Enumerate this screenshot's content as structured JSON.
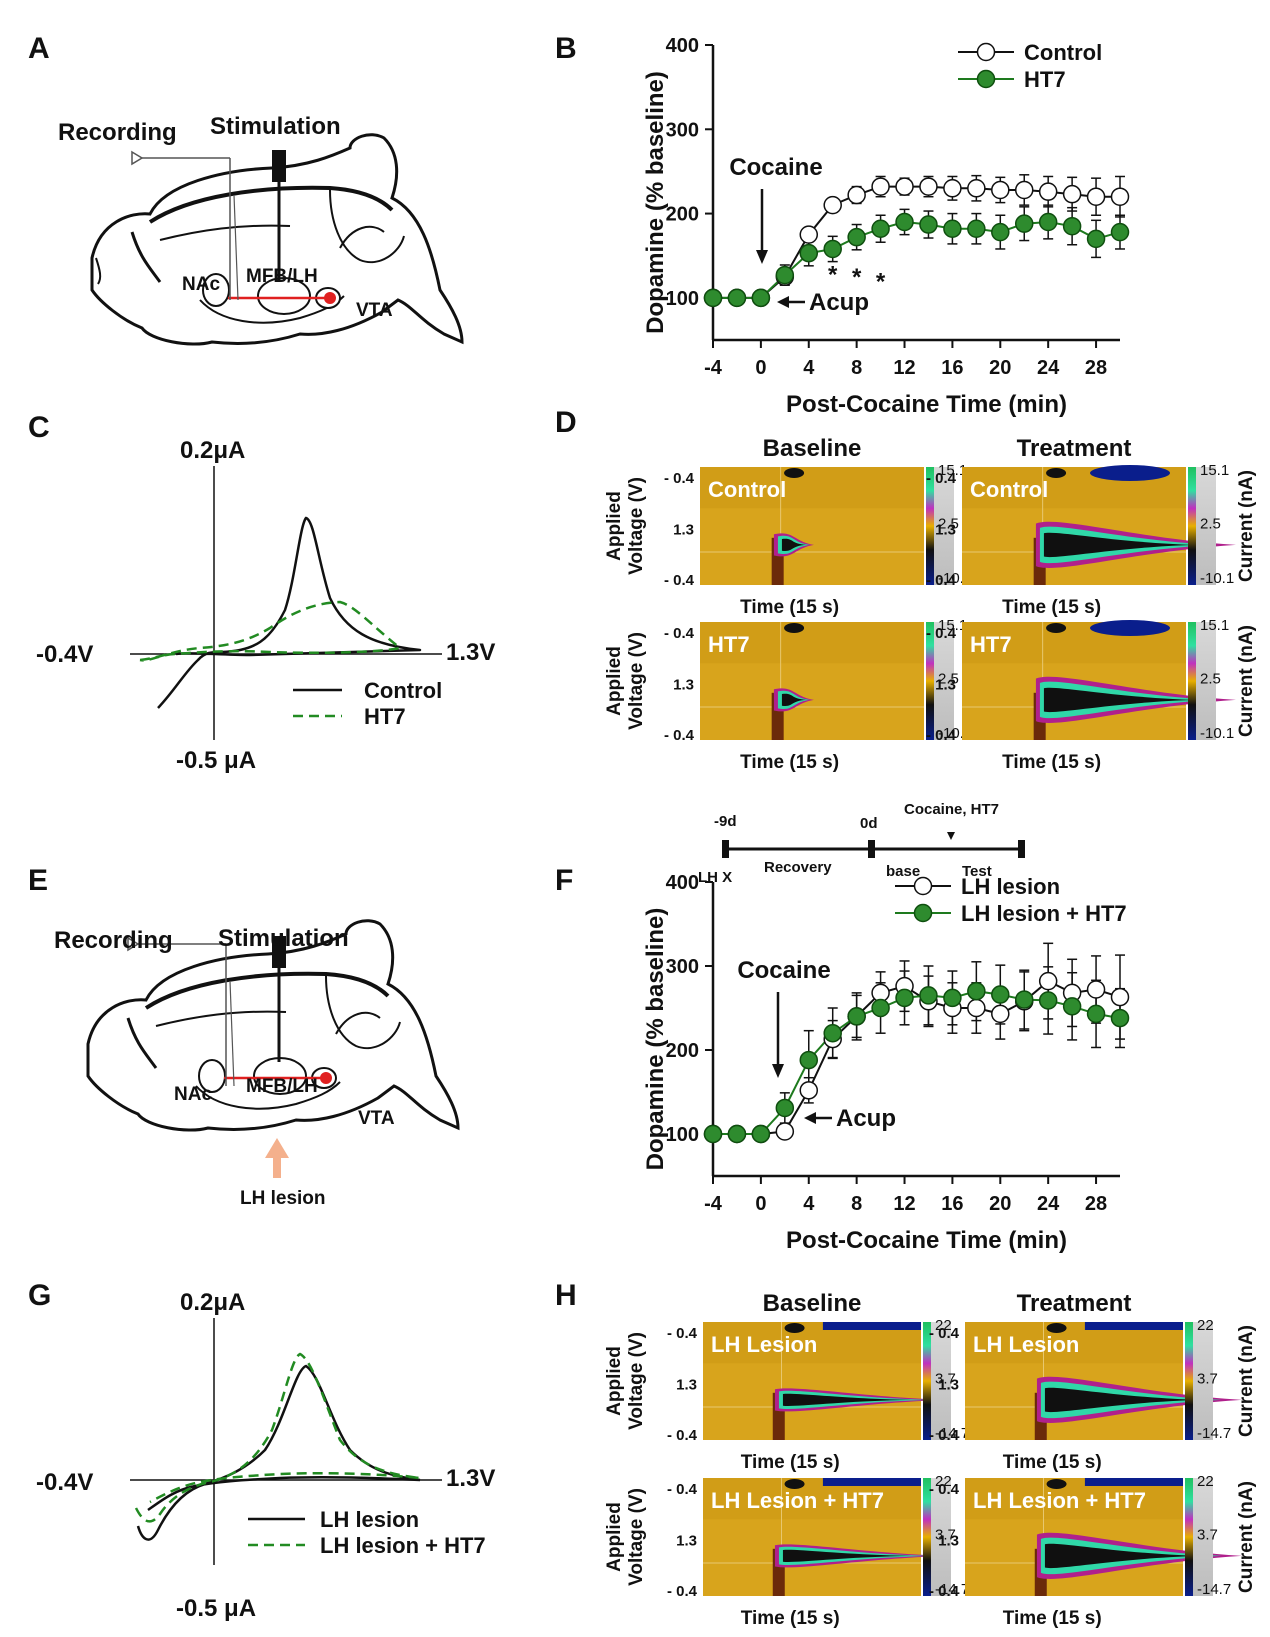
{
  "panels": {
    "A": {
      "letter": "A",
      "recording": "Recording",
      "stimulation": "Stimulation",
      "nac": "NAc",
      "mfb": "MFB/LH",
      "vta": "VTA"
    },
    "C": {
      "letter": "C",
      "top": "0.2μA",
      "bottom": "-0.5 μA",
      "left": "-0.4V",
      "right": "1.3V",
      "legend": [
        "Control",
        "HT7"
      ]
    },
    "D": {
      "letter": "D",
      "col_titles": [
        "Baseline",
        "Treatment"
      ],
      "row_labels": [
        "Control",
        "HT7"
      ],
      "ylabel_line1": "Applied",
      "ylabel_line2": "Voltage (V)",
      "yticks": [
        "- 0.4",
        "1.3",
        "- 0.4"
      ],
      "xlabel": "Time (15 s)",
      "current": "Current (nA)",
      "scale": [
        "15.1",
        "2.5",
        "-10.1"
      ]
    },
    "E": {
      "letter": "E",
      "recording": "Recording",
      "stimulation": "Stimulation",
      "nac": "NAc",
      "mfb": "MFB/LH",
      "vta": "VTA",
      "lesion": "LH lesion"
    },
    "G": {
      "letter": "G",
      "top": "0.2μA",
      "bottom": "-0.5 μA",
      "left": "-0.4V",
      "right": "1.3V",
      "legend": [
        "LH lesion",
        "LH lesion + HT7"
      ]
    },
    "H": {
      "letter": "H",
      "col_titles": [
        "Baseline",
        "Treatment"
      ],
      "row_labels": [
        "LH Lesion",
        "LH Lesion + HT7"
      ],
      "ylabel_line1": "Applied",
      "ylabel_line2": "Voltage (V)",
      "yticks": [
        "- 0.4",
        "1.3",
        "- 0.4"
      ],
      "xlabel": "Time (15 s)",
      "current": "Current (nA)",
      "scale": [
        "22",
        "3.7",
        "-14.7"
      ]
    },
    "timeline": {
      "t1": "-9d",
      "t2": "0d",
      "event": "Cocaine, HT7",
      "lhx": "LH X",
      "recovery": "Recovery",
      "base": "base",
      "test": "Test"
    }
  },
  "chart_data": [
    {
      "panel": "B",
      "type": "line",
      "ylabel": "Dopamine (% baseline)",
      "xlabel": "Post-Cocaine  Time (min)",
      "ylim": [
        50,
        400
      ],
      "xlim": [
        -4,
        30
      ],
      "yticks": [
        100,
        200,
        300,
        400
      ],
      "xticks": [
        -4,
        0,
        4,
        8,
        12,
        16,
        20,
        24,
        28
      ],
      "x": [
        -4,
        -2,
        0,
        2,
        4,
        6,
        8,
        10,
        12,
        14,
        16,
        18,
        20,
        22,
        24,
        26,
        28,
        30
      ],
      "series": [
        {
          "name": "Control",
          "marker": "open",
          "values": [
            100,
            100,
            100,
            125,
            175,
            210,
            222,
            232,
            232,
            232,
            230,
            230,
            228,
            228,
            226,
            223,
            220,
            220
          ],
          "err": [
            0,
            0,
            0,
            6,
            8,
            8,
            10,
            12,
            10,
            12,
            14,
            15,
            15,
            18,
            18,
            20,
            22,
            24
          ]
        },
        {
          "name": "HT7",
          "marker": "filled",
          "values": [
            100,
            100,
            100,
            127,
            153,
            158,
            172,
            182,
            190,
            187,
            182,
            182,
            178,
            188,
            190,
            185,
            170,
            178
          ],
          "err": [
            0,
            0,
            0,
            12,
            15,
            15,
            15,
            16,
            15,
            16,
            18,
            18,
            20,
            20,
            20,
            22,
            22,
            20
          ]
        }
      ],
      "annotations": {
        "cocaine": "Cocaine",
        "acup": "Acup",
        "star": "*"
      }
    },
    {
      "panel": "F",
      "type": "line",
      "ylabel": "Dopamine (% baseline)",
      "xlabel": "Post-Cocaine  Time (min)",
      "ylim": [
        50,
        400
      ],
      "xlim": [
        -4,
        30
      ],
      "yticks": [
        100,
        200,
        300,
        400
      ],
      "xticks": [
        -4,
        0,
        4,
        8,
        12,
        16,
        20,
        24,
        28
      ],
      "x": [
        -4,
        -2,
        0,
        2,
        4,
        6,
        8,
        10,
        12,
        14,
        16,
        18,
        20,
        22,
        24,
        26,
        28,
        30
      ],
      "series": [
        {
          "name": "LH lesion",
          "marker": "open",
          "values": [
            100,
            100,
            100,
            103,
            152,
            213,
            240,
            268,
            276,
            258,
            250,
            250,
            243,
            258,
            282,
            268,
            272,
            263
          ],
          "err": [
            0,
            0,
            0,
            5,
            15,
            22,
            25,
            25,
            30,
            30,
            30,
            30,
            30,
            35,
            45,
            40,
            40,
            50
          ]
        },
        {
          "name": "LH lesion + HT7",
          "marker": "filled",
          "values": [
            100,
            100,
            100,
            131,
            188,
            220,
            240,
            250,
            262,
            265,
            262,
            270,
            266,
            260,
            259,
            252,
            243,
            238
          ],
          "err": [
            0,
            0,
            0,
            18,
            35,
            30,
            28,
            30,
            32,
            35,
            32,
            35,
            35,
            35,
            40,
            40,
            40,
            35
          ]
        }
      ],
      "annotations": {
        "cocaine": "Cocaine",
        "acup": "Acup"
      }
    }
  ]
}
